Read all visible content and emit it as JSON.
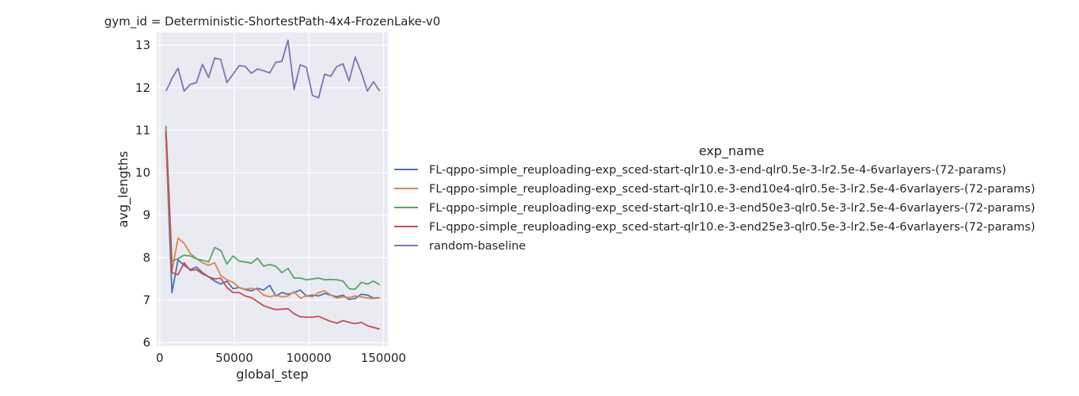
{
  "chart_data": {
    "type": "line",
    "title": "gym_id = Deterministic-ShortestPath-4x4-FrozenLake-v0",
    "xlabel": "global_step",
    "ylabel": "avg_lengths",
    "xlim": [
      -2000,
      153000
    ],
    "ylim": [
      5.92,
      13.3
    ],
    "xticks": [
      0,
      50000,
      100000,
      150000
    ],
    "xtick_labels": [
      "0",
      "50000",
      "100000",
      "150000"
    ],
    "yticks": [
      6,
      7,
      8,
      9,
      10,
      11,
      12,
      13
    ],
    "ytick_labels": [
      "6",
      "7",
      "8",
      "9",
      "10",
      "11",
      "12",
      "13"
    ],
    "grid": true,
    "legend_placement": "right",
    "legend_title": "exp_name",
    "x": [
      4096,
      6144,
      8192,
      12288,
      16384,
      20480,
      24576,
      28672,
      32768,
      36864,
      40960,
      45056,
      49152,
      53248,
      57344,
      61440,
      65536,
      69632,
      73728,
      77824,
      81920,
      86016,
      90112,
      94208,
      98304,
      102400,
      106496,
      110592,
      114688,
      118784,
      122880,
      126976,
      131072,
      135168,
      139264,
      143360,
      147456
    ],
    "series": [
      {
        "name": "FL-qppo-simple_reuploading-exp_sced-start-qlr10.e-3-end-qlr0.5e-3-lr2.5e-4-6varlayers-(72-params)",
        "color": "#4c72b0",
        "values": [
          10.95,
          9.0,
          7.18,
          7.95,
          7.82,
          7.72,
          7.78,
          7.65,
          7.55,
          7.45,
          7.38,
          7.45,
          7.27,
          7.3,
          7.25,
          7.22,
          7.28,
          7.24,
          7.35,
          7.1,
          7.18,
          7.14,
          7.18,
          7.24,
          7.1,
          7.12,
          7.1,
          7.16,
          7.12,
          7.08,
          7.12,
          7.02,
          7.04,
          7.14,
          7.12,
          7.05,
          7.06
        ]
      },
      {
        "name": "FL-qppo-simple_reuploading-exp_sced-start-qlr10.e-3-end10e4-qlr0.5e-3-lr2.5e-4-6varlayers-(72-params)",
        "color": "#dd8452",
        "values": [
          10.9,
          9.2,
          7.68,
          8.46,
          8.34,
          8.1,
          7.98,
          7.88,
          7.82,
          7.88,
          7.58,
          7.48,
          7.42,
          7.3,
          7.26,
          7.28,
          7.25,
          7.12,
          7.08,
          7.12,
          7.08,
          7.1,
          7.2,
          7.05,
          7.1,
          7.08,
          7.18,
          7.22,
          7.12,
          7.05,
          7.08,
          7.06,
          7.1,
          7.08,
          7.05,
          7.04,
          7.05
        ]
      },
      {
        "name": "FL-qppo-simple_reuploading-exp_sced-start-qlr10.e-3-end50e3-qlr0.5e-3-lr2.5e-4-6varlayers-(72-params)",
        "color": "#55a868",
        "values": [
          11.1,
          9.6,
          7.92,
          7.98,
          8.06,
          8.04,
          7.97,
          7.94,
          7.9,
          8.24,
          8.17,
          7.85,
          8.04,
          7.92,
          7.9,
          7.87,
          7.99,
          7.8,
          7.84,
          7.8,
          7.65,
          7.75,
          7.52,
          7.52,
          7.48,
          7.5,
          7.52,
          7.48,
          7.49,
          7.48,
          7.45,
          7.27,
          7.26,
          7.42,
          7.38,
          7.45,
          7.36
        ]
      },
      {
        "name": "FL-qppo-simple_reuploading-exp_sced-start-qlr10.e-3-end25e3-qlr0.5e-3-lr2.5e-4-6varlayers-(72-params)",
        "color": "#c44e52",
        "values": [
          11.0,
          9.4,
          7.65,
          7.6,
          7.88,
          7.7,
          7.72,
          7.62,
          7.55,
          7.5,
          7.52,
          7.3,
          7.18,
          7.18,
          7.1,
          7.06,
          6.97,
          6.87,
          6.82,
          6.78,
          6.79,
          6.8,
          6.68,
          6.61,
          6.6,
          6.6,
          6.62,
          6.56,
          6.5,
          6.46,
          6.52,
          6.48,
          6.45,
          6.48,
          6.4,
          6.36,
          6.32
        ]
      },
      {
        "name": "random-baseline",
        "color": "#8172b3",
        "values": [
          11.92,
          12.05,
          12.22,
          12.46,
          11.92,
          12.08,
          12.12,
          12.55,
          12.24,
          12.7,
          12.66,
          12.12,
          12.32,
          12.52,
          12.5,
          12.34,
          12.44,
          12.4,
          12.35,
          12.6,
          12.62,
          13.12,
          11.96,
          12.54,
          12.48,
          11.82,
          11.76,
          12.32,
          12.27,
          12.5,
          12.56,
          12.16,
          12.72,
          12.36,
          11.92,
          12.14,
          11.92
        ]
      }
    ]
  }
}
